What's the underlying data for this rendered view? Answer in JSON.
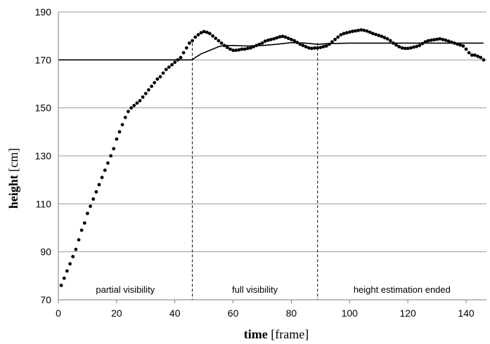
{
  "chart_data": {
    "type": "scatter",
    "xlabel": {
      "bold": "time",
      "rest": " [frame]"
    },
    "ylabel": {
      "bold": "height",
      "rest": " [cm]"
    },
    "xlim": [
      0,
      147
    ],
    "ylim": [
      70,
      190
    ],
    "xticks": [
      "0",
      "20",
      "40",
      "60",
      "80",
      "100",
      "120",
      "140"
    ],
    "yticks": [
      "70",
      "90",
      "110",
      "130",
      "150",
      "170",
      "190"
    ],
    "grid": "horizontal",
    "region_dividers": [
      46,
      89
    ],
    "regions": [
      {
        "label": "partial visibility",
        "center": 23
      },
      {
        "label": "full visibility",
        "center": 67.5
      },
      {
        "label": "height estimation ended",
        "center": 118
      }
    ],
    "series": [
      {
        "style": "dots",
        "points": [
          [
            1,
            76
          ],
          [
            2,
            79
          ],
          [
            3,
            82
          ],
          [
            4,
            85
          ],
          [
            5,
            88
          ],
          [
            6,
            91
          ],
          [
            7,
            95
          ],
          [
            8,
            99
          ],
          [
            9,
            102
          ],
          [
            10,
            106
          ],
          [
            11,
            109
          ],
          [
            12,
            112
          ],
          [
            13,
            115
          ],
          [
            14,
            118
          ],
          [
            15,
            121
          ],
          [
            16,
            124
          ],
          [
            17,
            127
          ],
          [
            18,
            130
          ],
          [
            19,
            133
          ],
          [
            20,
            137
          ],
          [
            21,
            140
          ],
          [
            22,
            143
          ],
          [
            23,
            146
          ],
          [
            24,
            148.5
          ],
          [
            25,
            150
          ],
          [
            26,
            151
          ],
          [
            27,
            152
          ],
          [
            28,
            153
          ],
          [
            29,
            154.5
          ],
          [
            30,
            156
          ],
          [
            31,
            157.5
          ],
          [
            32,
            159
          ],
          [
            33,
            160.5
          ],
          [
            34,
            162
          ],
          [
            35,
            163
          ],
          [
            36,
            164.5
          ],
          [
            37,
            166
          ],
          [
            38,
            167
          ],
          [
            39,
            168
          ],
          [
            40,
            169
          ],
          [
            41,
            170
          ],
          [
            42,
            171
          ],
          [
            43,
            173
          ],
          [
            44,
            175
          ],
          [
            45,
            177
          ],
          [
            46,
            178
          ],
          [
            47,
            179.5
          ],
          [
            48,
            180.5
          ],
          [
            49,
            181.3
          ],
          [
            50,
            181.8
          ],
          [
            51,
            181.5
          ],
          [
            52,
            181
          ],
          [
            53,
            180
          ],
          [
            54,
            179
          ],
          [
            55,
            178
          ],
          [
            56,
            177
          ],
          [
            57,
            176
          ],
          [
            58,
            175.2
          ],
          [
            59,
            174.5
          ],
          [
            60,
            174
          ],
          [
            61,
            174
          ],
          [
            62,
            174.2
          ],
          [
            63,
            174.5
          ],
          [
            64,
            174.5
          ],
          [
            65,
            174.8
          ],
          [
            66,
            175
          ],
          [
            67,
            175.5
          ],
          [
            68,
            176
          ],
          [
            69,
            176.5
          ],
          [
            70,
            177
          ],
          [
            71,
            177.8
          ],
          [
            72,
            178.2
          ],
          [
            73,
            178.5
          ],
          [
            74,
            178.8
          ],
          [
            75,
            179.2
          ],
          [
            76,
            179.6
          ],
          [
            77,
            179.8
          ],
          [
            78,
            179.5
          ],
          [
            79,
            179
          ],
          [
            80,
            178.5
          ],
          [
            81,
            178
          ],
          [
            82,
            177.3
          ],
          [
            83,
            176.5
          ],
          [
            84,
            176
          ],
          [
            85,
            175.5
          ],
          [
            86,
            175
          ],
          [
            87,
            174.8
          ],
          [
            88,
            175
          ],
          [
            89,
            175
          ],
          [
            90,
            175.2
          ],
          [
            91,
            175.5
          ],
          [
            92,
            175.8
          ],
          [
            93,
            176.5
          ],
          [
            94,
            177.5
          ],
          [
            95,
            178.5
          ],
          [
            96,
            179.5
          ],
          [
            97,
            180.5
          ],
          [
            98,
            181
          ],
          [
            99,
            181.3
          ],
          [
            100,
            181.6
          ],
          [
            101,
            181.9
          ],
          [
            102,
            182.1
          ],
          [
            103,
            182.3
          ],
          [
            104,
            182.5
          ],
          [
            105,
            182.3
          ],
          [
            106,
            182
          ],
          [
            107,
            181.5
          ],
          [
            108,
            181
          ],
          [
            109,
            180.6
          ],
          [
            110,
            180.2
          ],
          [
            111,
            179.8
          ],
          [
            112,
            179.3
          ],
          [
            113,
            178.8
          ],
          [
            114,
            178
          ],
          [
            115,
            177
          ],
          [
            116,
            176.2
          ],
          [
            117,
            175.5
          ],
          [
            118,
            175
          ],
          [
            119,
            174.8
          ],
          [
            120,
            174.8
          ],
          [
            121,
            175
          ],
          [
            122,
            175.3
          ],
          [
            123,
            175.6
          ],
          [
            124,
            176
          ],
          [
            125,
            176.8
          ],
          [
            126,
            177.5
          ],
          [
            127,
            178
          ],
          [
            128,
            178.2
          ],
          [
            129,
            178.4
          ],
          [
            130,
            178.6
          ],
          [
            131,
            178.8
          ],
          [
            132,
            178.5
          ],
          [
            133,
            178.2
          ],
          [
            134,
            177.8
          ],
          [
            135,
            177.4
          ],
          [
            136,
            177
          ],
          [
            137,
            176.6
          ],
          [
            138,
            176.2
          ],
          [
            139,
            175.8
          ],
          [
            140,
            174.5
          ],
          [
            141,
            173
          ],
          [
            142,
            172
          ],
          [
            143,
            172
          ],
          [
            144,
            171.5
          ],
          [
            145,
            171
          ],
          [
            146,
            170
          ]
        ]
      },
      {
        "style": "line",
        "points": [
          [
            0,
            170
          ],
          [
            46,
            170
          ],
          [
            47,
            171
          ],
          [
            49,
            172.5
          ],
          [
            51,
            173.5
          ],
          [
            53,
            174.5
          ],
          [
            55,
            175.5
          ],
          [
            57,
            176
          ],
          [
            60,
            176
          ],
          [
            65,
            175.8
          ],
          [
            70,
            176
          ],
          [
            75,
            176.5
          ],
          [
            80,
            177.2
          ],
          [
            85,
            177
          ],
          [
            89,
            176.5
          ],
          [
            93,
            176.8
          ],
          [
            100,
            177
          ],
          [
            110,
            177
          ],
          [
            120,
            177
          ],
          [
            130,
            177
          ],
          [
            140,
            177
          ],
          [
            146,
            177
          ]
        ]
      }
    ]
  }
}
